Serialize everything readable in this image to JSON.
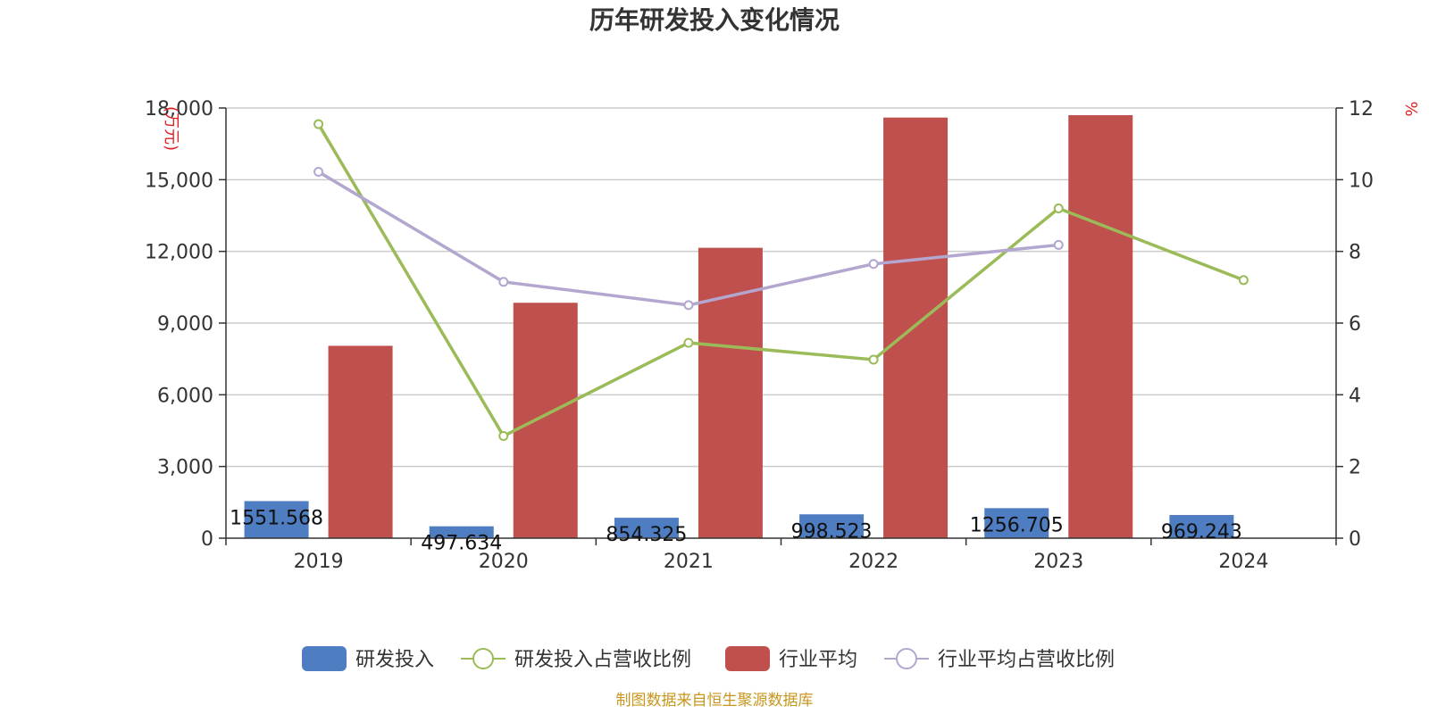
{
  "chart_data": {
    "type": "bar",
    "title": "历年研发投入变化情况",
    "categories": [
      "2019",
      "2020",
      "2021",
      "2022",
      "2023",
      "2024"
    ],
    "y_left": {
      "unit": "(万元)",
      "ylim": [
        0,
        18000
      ],
      "ticks": [
        0,
        3000,
        6000,
        9000,
        12000,
        15000,
        18000
      ],
      "tick_labels": [
        "0",
        "3,000",
        "6,000",
        "9,000",
        "12,000",
        "15,000",
        "18,000"
      ]
    },
    "y_right": {
      "unit": "%",
      "ylim": [
        0,
        12
      ],
      "ticks": [
        0,
        2,
        4,
        6,
        8,
        10,
        12
      ],
      "tick_labels": [
        "0",
        "2",
        "4",
        "6",
        "8",
        "10",
        "12"
      ]
    },
    "series": [
      {
        "name": "研发投入",
        "type": "bar",
        "axis": "left",
        "color": "#4e7dc1",
        "values": [
          1551.568,
          497.634,
          854.325,
          998.523,
          1256.705,
          969.243
        ],
        "labels": [
          "1551.568",
          "497.634",
          "854.325",
          "998.523",
          "1256.705",
          "969.243"
        ]
      },
      {
        "name": "研发投入占营收比例",
        "type": "line",
        "axis": "right",
        "color": "#9bbb59",
        "values": [
          11.55,
          2.85,
          5.45,
          4.98,
          9.2,
          7.2
        ]
      },
      {
        "name": "行业平均",
        "type": "bar",
        "axis": "left",
        "color": "#c0504d",
        "values": [
          8050,
          9850,
          12150,
          17600,
          17700,
          null
        ]
      },
      {
        "name": "行业平均占营收比例",
        "type": "line",
        "axis": "right",
        "color": "#b3a6cf",
        "values": [
          10.22,
          7.15,
          6.5,
          7.65,
          8.18,
          null
        ]
      }
    ],
    "grid": true,
    "legend_position": "bottom"
  },
  "footer": {
    "source": "制图数据来自恒生聚源数据库"
  }
}
